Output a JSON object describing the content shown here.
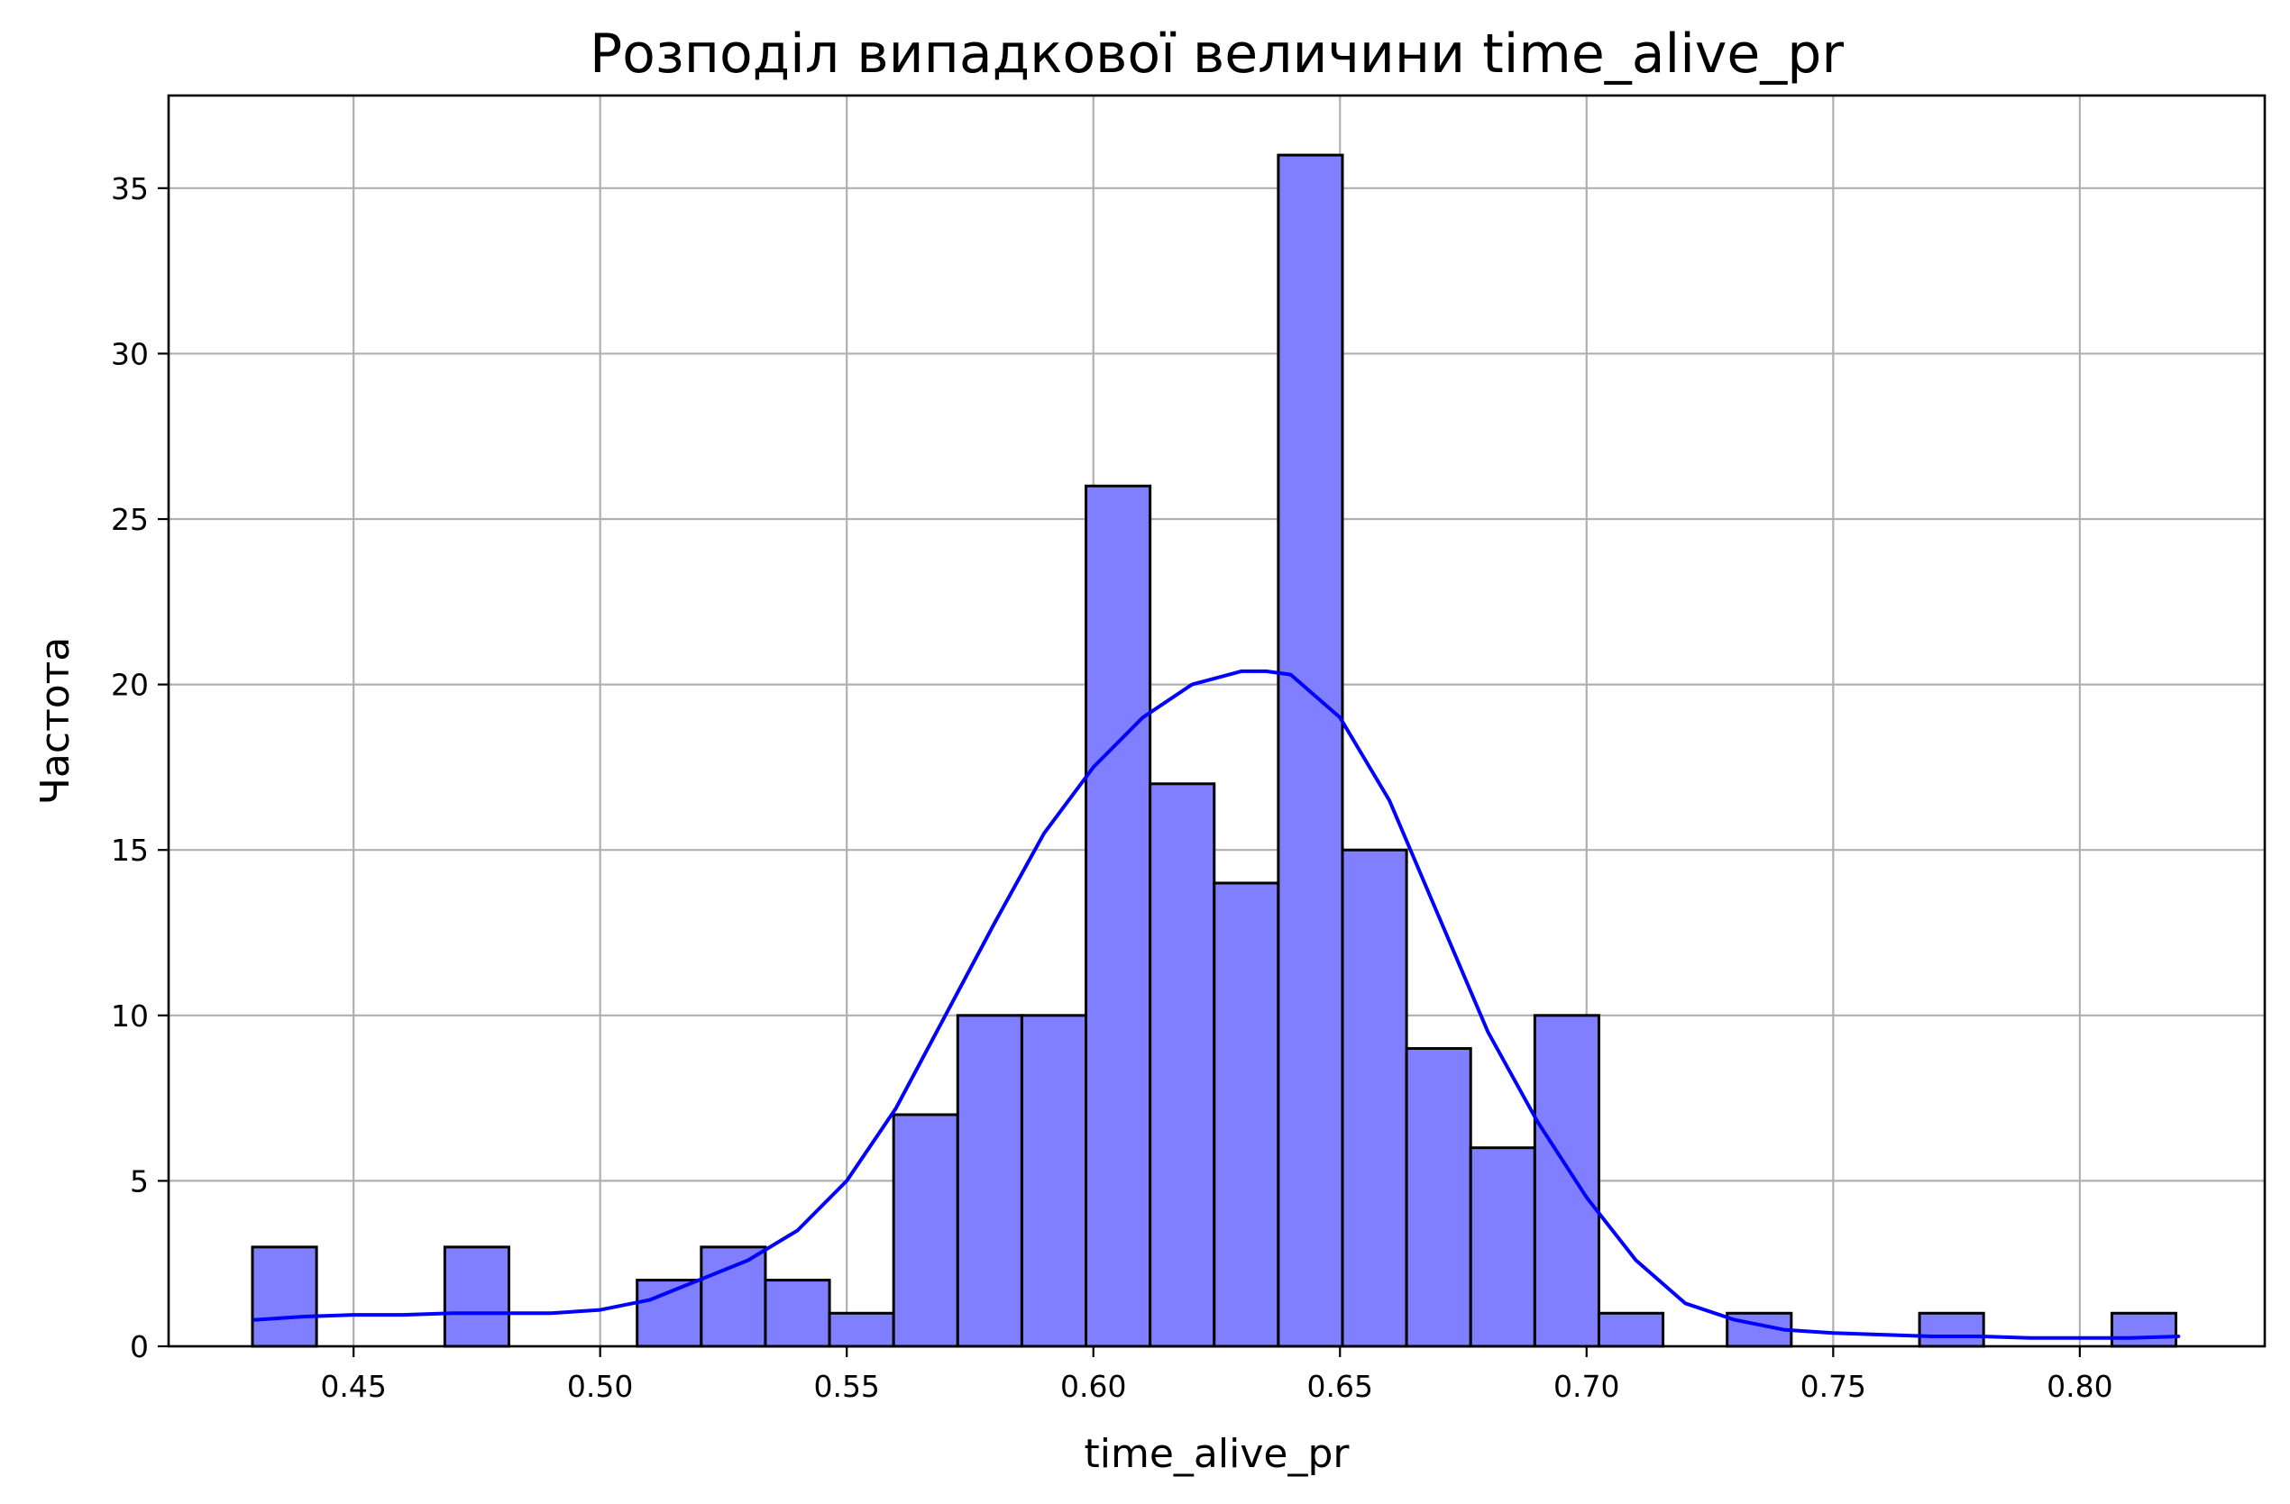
{
  "chart_data": {
    "type": "bar",
    "subtype": "histogram-with-kde",
    "title": "Розподіл випадкової величини time_alive_pr",
    "xlabel": "time_alive_pr",
    "ylabel": "Частота",
    "xlim": [
      0.4125,
      0.8375
    ],
    "ylim": [
      0,
      37.8
    ],
    "x_ticks": [
      0.45,
      0.5,
      0.55,
      0.6,
      0.65,
      0.7,
      0.75,
      0.8
    ],
    "x_tick_labels": [
      "0.45",
      "0.50",
      "0.55",
      "0.60",
      "0.65",
      "0.70",
      "0.75",
      "0.80"
    ],
    "y_ticks": [
      0,
      5,
      10,
      15,
      20,
      25,
      30,
      35
    ],
    "y_tick_labels": [
      "0",
      "5",
      "10",
      "15",
      "20",
      "25",
      "30",
      "35"
    ],
    "grid": true,
    "bins": {
      "start": 0.4295,
      "width": 0.013,
      "counts": [
        3,
        0,
        0,
        3,
        0,
        0,
        2,
        3,
        2,
        1,
        7,
        10,
        10,
        26,
        17,
        14,
        36,
        15,
        9,
        6,
        10,
        1,
        0,
        1,
        0,
        0,
        1,
        0,
        0,
        1
      ]
    },
    "kde": {
      "x": [
        0.43,
        0.44,
        0.45,
        0.46,
        0.47,
        0.48,
        0.49,
        0.5,
        0.51,
        0.52,
        0.53,
        0.54,
        0.55,
        0.56,
        0.57,
        0.58,
        0.59,
        0.6,
        0.61,
        0.62,
        0.63,
        0.635,
        0.64,
        0.65,
        0.66,
        0.67,
        0.68,
        0.69,
        0.7,
        0.71,
        0.72,
        0.73,
        0.74,
        0.75,
        0.76,
        0.77,
        0.78,
        0.79,
        0.8,
        0.81,
        0.82
      ],
      "y": [
        0.8,
        0.9,
        0.95,
        0.95,
        1.0,
        1.0,
        1.0,
        1.1,
        1.4,
        2.0,
        2.6,
        3.5,
        5.0,
        7.2,
        10.0,
        12.8,
        15.5,
        17.5,
        19.0,
        20.0,
        20.4,
        20.4,
        20.3,
        19.0,
        16.5,
        13.0,
        9.5,
        6.8,
        4.5,
        2.6,
        1.3,
        0.8,
        0.5,
        0.4,
        0.35,
        0.3,
        0.3,
        0.25,
        0.25,
        0.25,
        0.3
      ]
    },
    "colors": {
      "bar_fill": "#7f7fff",
      "bar_edge": "#000000",
      "kde_line": "#0000ff",
      "grid": "#b0b0b0"
    }
  }
}
